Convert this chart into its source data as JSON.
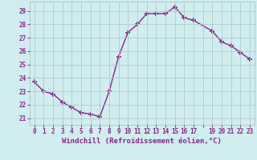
{
  "x": [
    0,
    1,
    2,
    3,
    4,
    5,
    6,
    7,
    8,
    9,
    10,
    11,
    12,
    13,
    14,
    15,
    16,
    17,
    19,
    20,
    21,
    22,
    23
  ],
  "y": [
    23.7,
    23.0,
    22.8,
    22.2,
    21.8,
    21.4,
    21.3,
    21.1,
    23.0,
    25.6,
    27.4,
    28.0,
    28.8,
    28.8,
    28.8,
    29.3,
    28.5,
    28.3,
    27.5,
    26.7,
    26.4,
    25.9,
    25.4
  ],
  "line_color": "#882288",
  "marker": "+",
  "marker_size": 4,
  "marker_linewidth": 1.2,
  "xlabel": "Windchill (Refroidissement éolien,°C)",
  "xlabel_fontsize": 6.5,
  "ylabel_ticks": [
    21,
    22,
    23,
    24,
    25,
    26,
    27,
    28,
    29
  ],
  "xtick_labels": [
    "0",
    "1",
    "2",
    "3",
    "4",
    "5",
    "6",
    "7",
    "8",
    "9",
    "10",
    "11",
    "12",
    "13",
    "14",
    "15",
    "16",
    "17",
    "",
    "19",
    "20",
    "21",
    "22",
    "23"
  ],
  "xtick_positions": [
    0,
    1,
    2,
    3,
    4,
    5,
    6,
    7,
    8,
    9,
    10,
    11,
    12,
    13,
    14,
    15,
    16,
    17,
    18,
    19,
    20,
    21,
    22,
    23
  ],
  "ylim": [
    20.5,
    29.7
  ],
  "xlim": [
    -0.5,
    23.5
  ],
  "bg_color": "#d0eef0",
  "grid_color": "#b0c8c8",
  "tick_color": "#882288",
  "tick_fontsize": 5.5,
  "linewidth": 1.0
}
